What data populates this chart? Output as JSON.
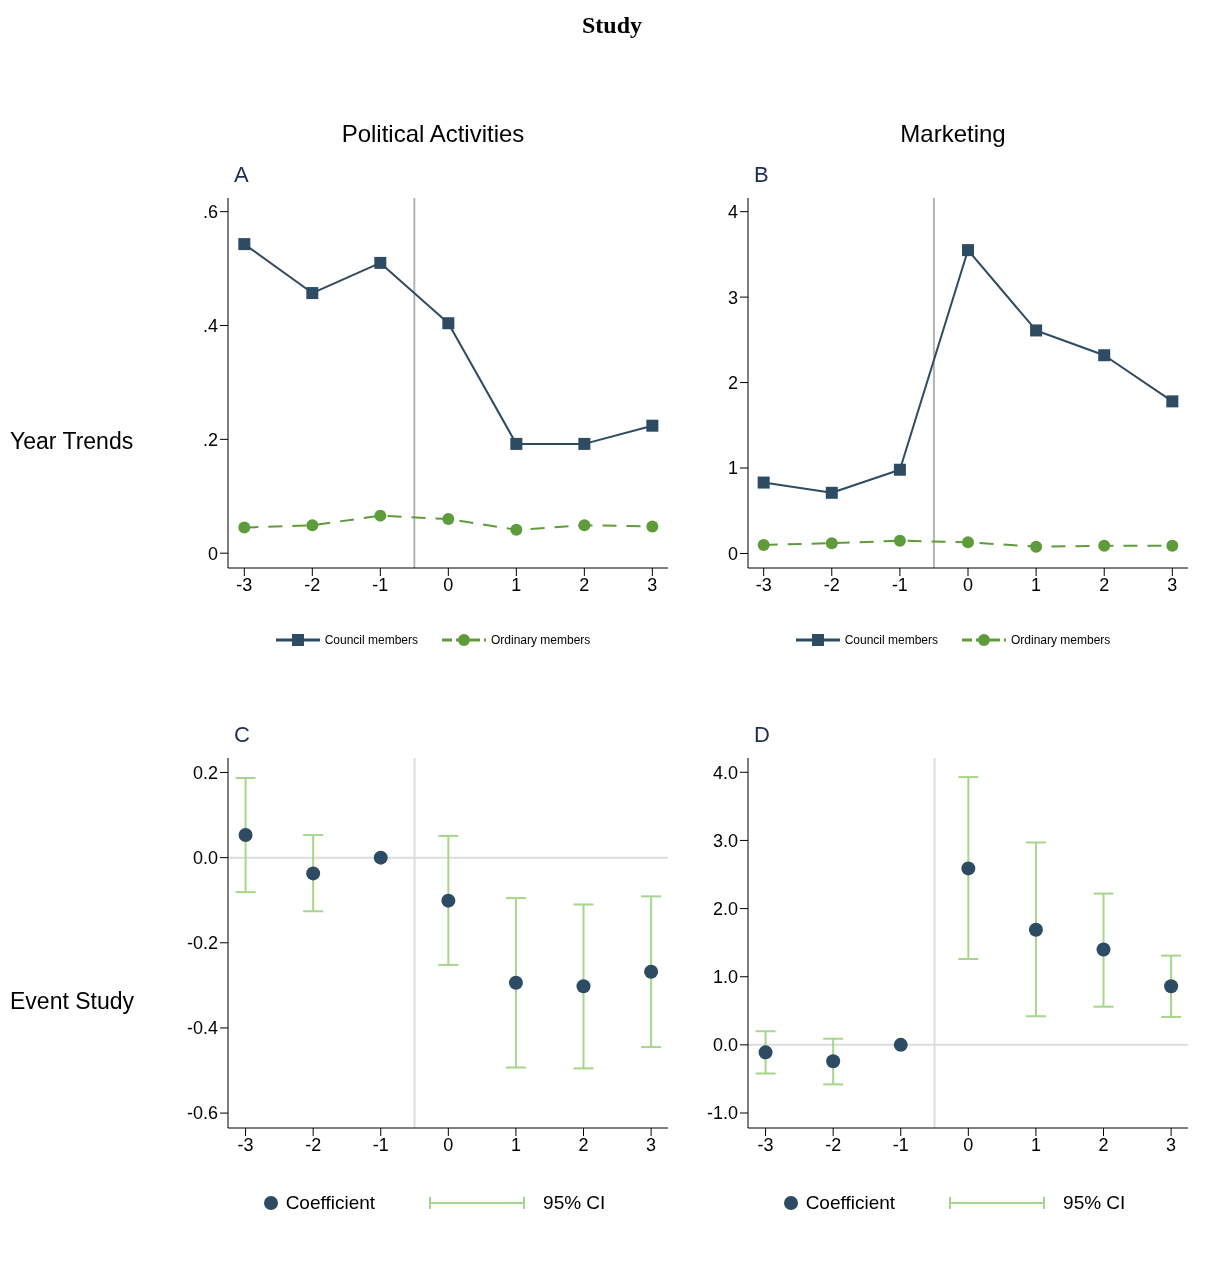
{
  "chart_data": [
    {
      "type": "line",
      "title": "A",
      "ylabel": "Year Trends",
      "annotations": [
        "Study",
        "Political Activities"
      ],
      "x": [
        -3,
        -2,
        -1,
        0,
        1,
        2,
        3
      ],
      "xlim": [
        -3.24,
        3.23
      ],
      "xticks": [
        -3,
        -2,
        -1,
        0,
        1,
        2,
        3
      ],
      "ylim": [
        -0.026,
        0.624
      ],
      "yticks": [
        {
          "value": 0,
          "label": "0"
        },
        {
          "value": 0.2,
          "label": ".2"
        },
        {
          "value": 0.4,
          "label": ".4"
        },
        {
          "value": 0.6,
          "label": ".6"
        }
      ],
      "grid": false,
      "legend": "bottom",
      "series": [
        {
          "name": "Council members",
          "color": "#2d4b63",
          "marker": "square",
          "line_style": "solid",
          "values": [
            0.543,
            0.457,
            0.51,
            0.404,
            0.192,
            0.192,
            0.224
          ]
        },
        {
          "name": "Ordinary members",
          "color": "#5f9b3a",
          "marker": "circle",
          "line_style": "dashed",
          "values": [
            0.045,
            0.049,
            0.066,
            0.06,
            0.041,
            0.049,
            0.047
          ]
        }
      ],
      "ref_lines": [
        {
          "axis": "x",
          "value": -0.5,
          "color": "#b4b4b4"
        }
      ]
    },
    {
      "type": "line",
      "title": "B",
      "annotations": [
        "Marketing"
      ],
      "x": [
        -3,
        -2,
        -1,
        0,
        1,
        2,
        3
      ],
      "xlim": [
        -3.23,
        3.23
      ],
      "xticks": [
        -3,
        -2,
        -1,
        0,
        1,
        2,
        3
      ],
      "ylim": [
        -0.17,
        4.16
      ],
      "yticks": [
        0,
        1,
        2,
        3,
        4
      ],
      "grid": false,
      "legend": "bottom",
      "series": [
        {
          "name": "Council members",
          "color": "#2d4b63",
          "marker": "square",
          "line_style": "solid",
          "values": [
            0.83,
            0.71,
            0.98,
            3.55,
            2.61,
            2.32,
            1.78
          ]
        },
        {
          "name": "Ordinary members",
          "color": "#5f9b3a",
          "marker": "circle",
          "line_style": "dashed",
          "values": [
            0.1,
            0.12,
            0.15,
            0.13,
            0.08,
            0.09,
            0.09
          ]
        }
      ],
      "ref_lines": [
        {
          "axis": "x",
          "value": -0.5,
          "color": "#b4b4b4"
        }
      ]
    },
    {
      "type": "scatter",
      "title": "C",
      "ylabel": "Event Study",
      "annotations": [
        "95% CI"
      ],
      "x": [
        -3,
        -2,
        -1,
        0,
        1,
        2,
        3
      ],
      "xlim": [
        -3.26,
        3.25
      ],
      "xticks": [
        -3,
        -2,
        -1,
        0,
        1,
        2,
        3
      ],
      "ylim": [
        -0.635,
        0.234
      ],
      "yticks": [
        {
          "value": -0.6,
          "label": "-0.6"
        },
        {
          "value": -0.4,
          "label": "-0.4"
        },
        {
          "value": -0.2,
          "label": "-0.2"
        },
        {
          "value": 0,
          "label": "0.0"
        },
        {
          "value": 0.2,
          "label": "0.2"
        }
      ],
      "grid": false,
      "legend": "bottom",
      "marker": "circle",
      "series": [
        {
          "name": "Coefficient",
          "color": "#2d4b63",
          "values": [
            0.053,
            -0.037,
            0,
            -0.101,
            -0.294,
            -0.302,
            -0.268
          ],
          "errors": [
            [
              -0.081,
              0.187
            ],
            [
              -0.126,
              0.053
            ],
            null,
            [
              -0.252,
              0.051
            ],
            [
              -0.493,
              -0.095
            ],
            [
              -0.495,
              -0.11
            ],
            [
              -0.445,
              -0.091
            ]
          ]
        }
      ],
      "ref_lines": [
        {
          "axis": "x",
          "value": -0.5,
          "color": "#dddddd"
        },
        {
          "axis": "y",
          "value": 0,
          "color": "#dddddd"
        }
      ]
    },
    {
      "type": "scatter",
      "title": "D",
      "annotations": [
        "95% CI"
      ],
      "x": [
        -3,
        -2,
        -1,
        0,
        1,
        2,
        3
      ],
      "xlim": [
        -3.26,
        3.25
      ],
      "xticks": [
        -3,
        -2,
        -1,
        0,
        1,
        2,
        3
      ],
      "ylim": [
        -1.22,
        4.21
      ],
      "yticks": [
        {
          "value": -1,
          "label": "-1.0"
        },
        {
          "value": 0,
          "label": "0.0"
        },
        {
          "value": 1,
          "label": "1.0"
        },
        {
          "value": 2,
          "label": "2.0"
        },
        {
          "value": 3,
          "label": "3.0"
        },
        {
          "value": 4,
          "label": "4.0"
        }
      ],
      "grid": false,
      "legend": "bottom",
      "marker": "circle",
      "series": [
        {
          "name": "Coefficient",
          "color": "#2d4b63",
          "values": [
            -0.11,
            -0.24,
            0,
            2.59,
            1.69,
            1.4,
            0.86
          ],
          "errors": [
            [
              -0.42,
              0.2
            ],
            [
              -0.58,
              0.09
            ],
            null,
            [
              1.26,
              3.93
            ],
            [
              0.42,
              2.97
            ],
            [
              0.56,
              2.22
            ],
            [
              0.41,
              1.31
            ]
          ]
        }
      ],
      "ref_lines": [
        {
          "axis": "x",
          "value": -0.5,
          "color": "#dddddd"
        },
        {
          "axis": "y",
          "value": 0,
          "color": "#dddddd"
        }
      ]
    }
  ]
}
